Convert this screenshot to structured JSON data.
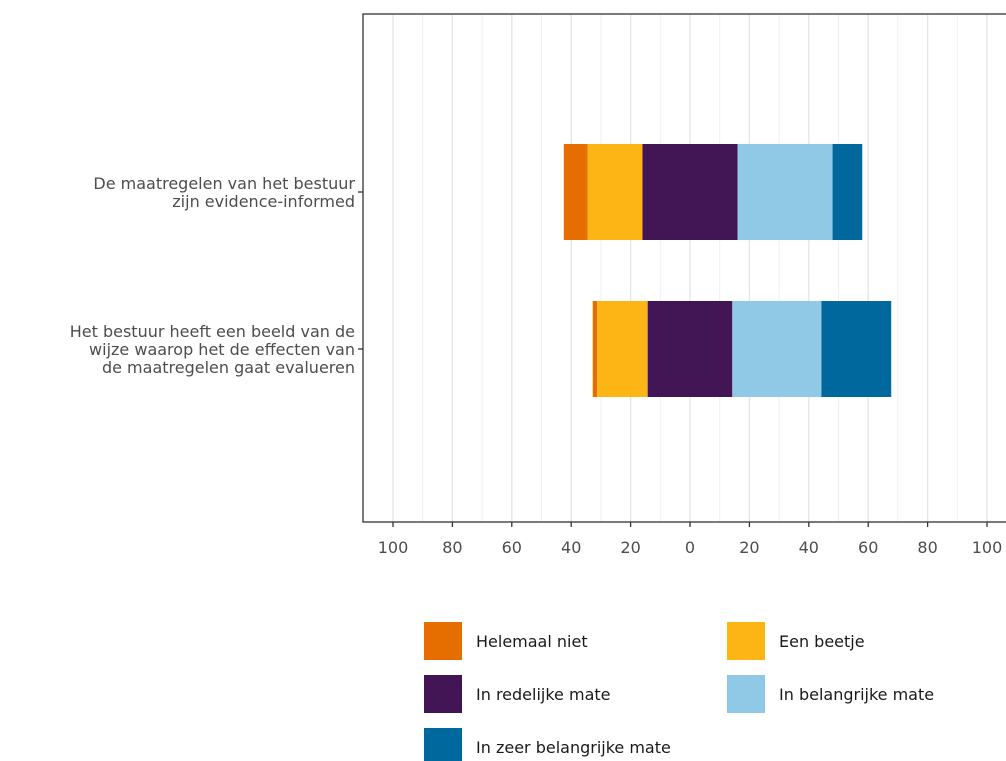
{
  "chart_data": {
    "type": "bar",
    "orientation": "horizontal",
    "layout": "diverging-stacked",
    "categories": [
      [
        "De maatregelen van het bestuur",
        "zijn evidence-informed"
      ],
      [
        "Het bestuur heeft een beeld van de",
        "wijze waarop het de effecten van",
        "de maatregelen gaat evalueren"
      ]
    ],
    "series": [
      {
        "name": "Helemaal niet",
        "color": "#E66E00",
        "values": [
          8,
          1.5
        ],
        "side": "negative"
      },
      {
        "name": "Een beetje",
        "color": "#FDB515",
        "values": [
          18.5,
          17
        ],
        "side": "negative"
      },
      {
        "name": "In redelijke mate",
        "color": "#421555",
        "values": [
          32,
          28.5
        ],
        "side": "center"
      },
      {
        "name": "In belangrijke mate",
        "color": "#8FC9E6",
        "values": [
          32,
          30
        ],
        "side": "positive"
      },
      {
        "name": "In zeer belangrijke mate",
        "color": "#00689D",
        "values": [
          10,
          23.5
        ],
        "side": "positive"
      }
    ],
    "x_ticks": [
      "100",
      "80",
      "60",
      "40",
      "20",
      "0",
      "20",
      "40",
      "60",
      "80",
      "100"
    ],
    "xlim": [
      -100,
      100
    ],
    "grid": true,
    "legend_position": "bottom"
  }
}
